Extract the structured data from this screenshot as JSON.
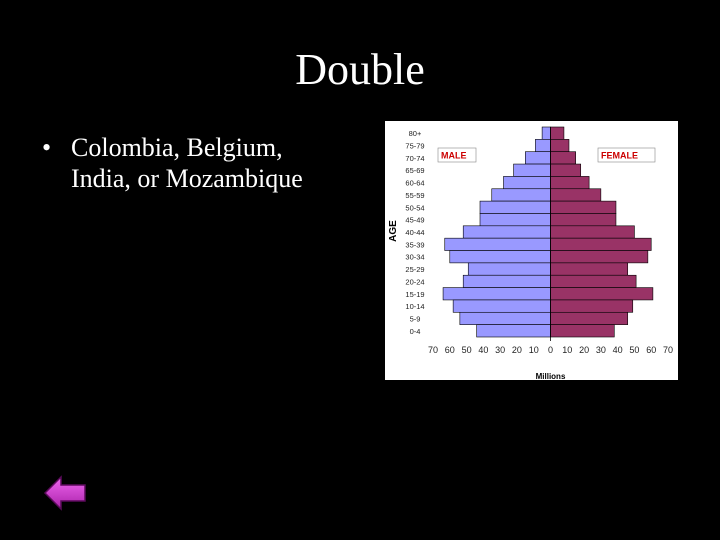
{
  "slide": {
    "title": "Double",
    "bullets": [
      "Colombia, Belgium, India, or Mozambique"
    ],
    "back_icon": "left-arrow-icon"
  },
  "colors": {
    "background": "#000000",
    "male": "#9999ff",
    "female": "#993366",
    "label_red": "#cc0000",
    "arrow": "#cc33cc"
  },
  "chart_data": {
    "type": "bar",
    "orientation": "horizontal-population-pyramid",
    "title": "",
    "xlabel": "Millions",
    "ylabel": "AGE",
    "xlim": [
      -70,
      70
    ],
    "x_ticks": [
      "70",
      "60",
      "50",
      "40",
      "30",
      "20",
      "10",
      "0",
      "10",
      "20",
      "30",
      "40",
      "50",
      "60",
      "70"
    ],
    "categories": [
      "80+",
      "75-79",
      "70-74",
      "65-69",
      "60-64",
      "55-59",
      "50-54",
      "45-49",
      "40-44",
      "35-39",
      "30-34",
      "25-29",
      "20-24",
      "15-19",
      "10-14",
      "5-9",
      "0-4"
    ],
    "series": [
      {
        "name": "MALE",
        "values": [
          5,
          9,
          15,
          22,
          28,
          35,
          42,
          42,
          52,
          63,
          60,
          49,
          52,
          64,
          58,
          54,
          44
        ]
      },
      {
        "name": "FEMALE",
        "values": [
          8,
          11,
          15,
          18,
          23,
          30,
          39,
          39,
          50,
          60,
          58,
          46,
          51,
          61,
          49,
          46,
          38
        ]
      }
    ]
  }
}
